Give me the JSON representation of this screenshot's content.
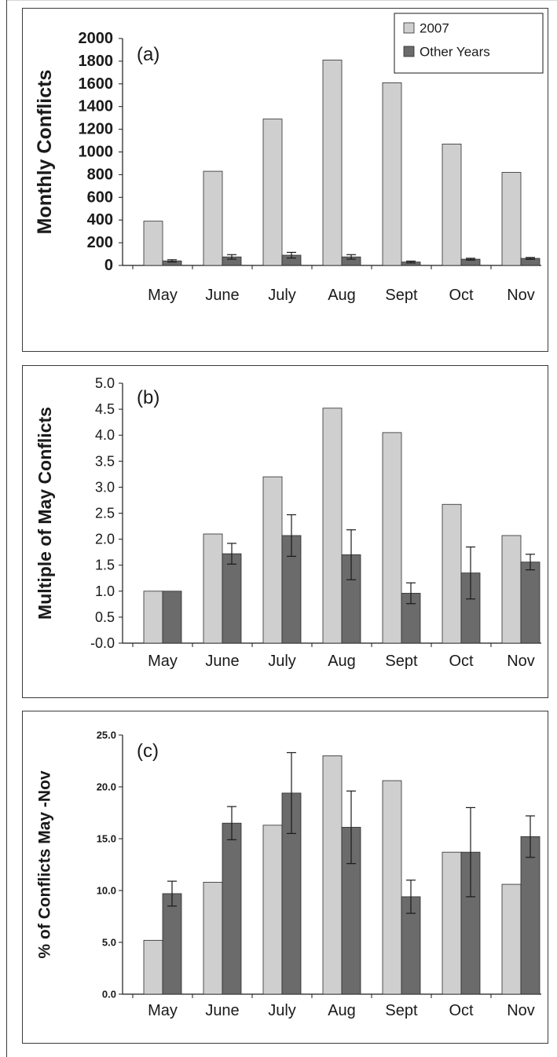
{
  "colors": {
    "series_2007": "#cfcfcf",
    "series_other": "#6b6b6b",
    "axis": "#1a1a1a",
    "bar_stroke": "#2b2b2b"
  },
  "chart_data": [
    {
      "type": "bar",
      "panel_label": "(a)",
      "ylabel": "Monthly Conflicts",
      "xlabel": "",
      "categories": [
        "May",
        "June",
        "July",
        "Aug",
        "Sept",
        "Oct",
        "Nov"
      ],
      "ylim": [
        0,
        2000
      ],
      "yticks": [
        "0",
        "200",
        "400",
        "600",
        "800",
        "1000",
        "1200",
        "1400",
        "1600",
        "1800",
        "2000"
      ],
      "legend": {
        "placement": "top-right",
        "entries": [
          "2007",
          "Other Years"
        ]
      },
      "series": [
        {
          "name": "2007",
          "values": [
            390,
            830,
            1290,
            1810,
            1610,
            1070,
            820
          ]
        },
        {
          "name": "Other Years",
          "values": [
            40,
            75,
            90,
            75,
            30,
            55,
            62
          ],
          "error": [
            10,
            20,
            25,
            20,
            8,
            8,
            8
          ]
        }
      ],
      "grid": false
    },
    {
      "type": "bar",
      "panel_label": "(b)",
      "ylabel": "Multiple of May Conflicts",
      "xlabel": "",
      "categories": [
        "May",
        "June",
        "July",
        "Aug",
        "Sept",
        "Oct",
        "Nov"
      ],
      "ylim": [
        0,
        5
      ],
      "yticks": [
        "-0.0",
        "0.5",
        "1.0",
        "1.5",
        "2.0",
        "2.5",
        "3.0",
        "3.5",
        "4.0",
        "4.5",
        "5.0"
      ],
      "series": [
        {
          "values": [
            1.0,
            2.1,
            3.2,
            4.52,
            4.05,
            2.67,
            2.07
          ]
        },
        {
          "values": [
            1.0,
            1.72,
            2.07,
            1.7,
            0.96,
            1.35,
            1.56
          ],
          "error": [
            0,
            0.2,
            0.4,
            0.48,
            0.2,
            0.5,
            0.15
          ]
        }
      ],
      "grid": false
    },
    {
      "type": "bar",
      "panel_label": "(c)",
      "ylabel": "% of Conflicts May -Nov",
      "xlabel": "",
      "categories": [
        "May",
        "June",
        "July",
        "Aug",
        "Sept",
        "Oct",
        "Nov"
      ],
      "ylim": [
        0,
        25
      ],
      "yticks": [
        "0.0",
        "5.0",
        "10.0",
        "15.0",
        "20.0",
        "25.0"
      ],
      "series": [
        {
          "values": [
            5.2,
            10.8,
            16.3,
            23.0,
            20.6,
            13.7,
            10.6
          ]
        },
        {
          "values": [
            9.7,
            16.5,
            19.4,
            16.1,
            9.4,
            13.7,
            15.2
          ],
          "error": [
            1.2,
            1.6,
            3.9,
            3.5,
            1.6,
            4.3,
            2.0
          ]
        }
      ],
      "grid": false
    }
  ]
}
